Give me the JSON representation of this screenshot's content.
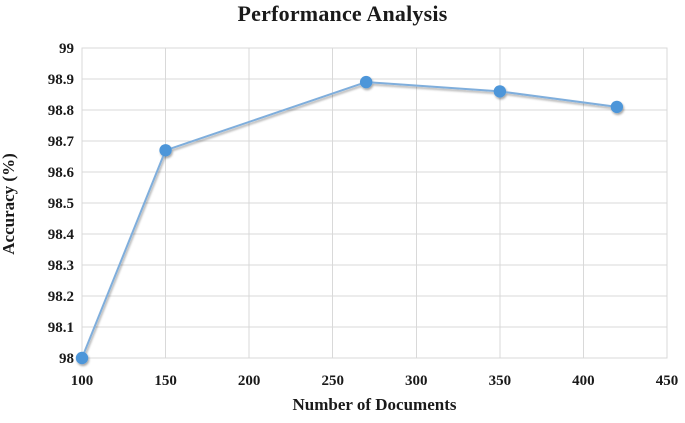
{
  "chart_data": {
    "type": "line",
    "title": "Performance Analysis",
    "xlabel": "Number of Documents",
    "ylabel": "Accuracy (%)",
    "series": [
      {
        "name": "Accuracy",
        "x": [
          100,
          150,
          270,
          350,
          420
        ],
        "y": [
          98.0,
          98.67,
          98.89,
          98.86,
          98.81
        ]
      }
    ],
    "xlim": [
      100,
      450
    ],
    "ylim": [
      98,
      99
    ],
    "xticks": [
      100,
      150,
      200,
      250,
      300,
      350,
      400,
      450
    ],
    "yticks": [
      98,
      98.1,
      98.2,
      98.3,
      98.4,
      98.5,
      98.6,
      98.7,
      98.8,
      98.9,
      99
    ],
    "grid": true,
    "legend_position": "none",
    "colors": {
      "line": "#7FAEDC",
      "marker": "#4E96D9",
      "grid": "#D9D9D9",
      "text": "#1A1A1A",
      "background": "#FFFFFF"
    }
  }
}
